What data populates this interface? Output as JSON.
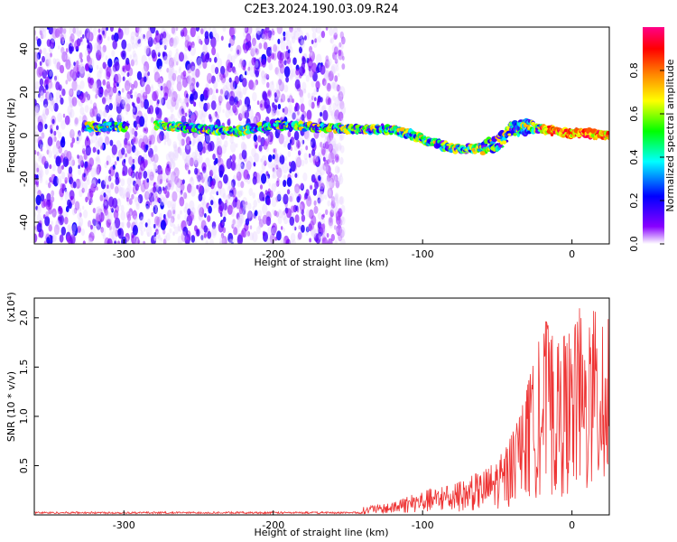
{
  "title": "C2E3.2024.190.03.09.R24",
  "chart_data": [
    {
      "type": "heatmap",
      "xlabel": "Height of straight line (km)",
      "ylabel": "Frequency (Hz)",
      "xlim": [
        -360,
        25
      ],
      "ylim": [
        -50,
        50
      ],
      "x_ticks": [
        -300,
        -200,
        -100,
        0
      ],
      "x_tick_labels": [
        "-300",
        "-200",
        "-100",
        "0"
      ],
      "y_ticks": [
        -40,
        -20,
        0,
        20,
        40
      ],
      "y_tick_labels": [
        "-40",
        "-20",
        "0",
        "20",
        "40"
      ],
      "grid": false,
      "colorbar": {
        "label": "Normalized spectral amplitude",
        "range": [
          0,
          1
        ],
        "ticks": [
          0.0,
          0.2,
          0.4,
          0.6,
          0.8
        ],
        "tick_labels": [
          "0.0",
          "0.2",
          "0.4",
          "0.6",
          "0.8"
        ],
        "colormap": [
          "#ffffff",
          "#8800ff",
          "#0000ff",
          "#00ffff",
          "#00ff00",
          "#ffff00",
          "#ff8800",
          "#ff0000",
          "#ff0088"
        ]
      },
      "noise_region_x": [
        -360,
        -165
      ],
      "signal_track": {
        "x": [
          -325,
          -300,
          -275,
          -250,
          -225,
          -200,
          -175,
          -150,
          -125,
          -110,
          -95,
          -80,
          -65,
          -50,
          -40,
          -30,
          -20,
          -10,
          0,
          10,
          25
        ],
        "freq": [
          4,
          4,
          5,
          3,
          2,
          5,
          4,
          3,
          3,
          1,
          -3,
          -6,
          -6,
          -4,
          3,
          4,
          3,
          2,
          1,
          1,
          0
        ]
      }
    },
    {
      "type": "line",
      "xlabel": "Height of straight line (km)",
      "ylabel": "SNR (10 * v/v)",
      "y_multiplier": "(x10⁴)",
      "xlim": [
        -360,
        25
      ],
      "ylim": [
        0,
        2.2
      ],
      "x_ticks": [
        -300,
        -200,
        -100,
        0
      ],
      "x_tick_labels": [
        "-300",
        "-200",
        "-100",
        "0"
      ],
      "y_ticks": [
        0.5,
        1.0,
        1.5,
        2.0
      ],
      "y_tick_labels": [
        "0.5",
        "1.0",
        "1.5",
        "2.0"
      ],
      "grid": false,
      "series": [
        {
          "color": "#ee3333",
          "envelope_x": [
            -360,
            -200,
            -150,
            -120,
            -100,
            -80,
            -60,
            -45,
            -35,
            -25,
            -18,
            -10,
            -5,
            0,
            5,
            10,
            15,
            20,
            25
          ],
          "envelope_y": [
            0.02,
            0.03,
            0.06,
            0.12,
            0.25,
            0.3,
            0.45,
            0.65,
            1.0,
            1.6,
            2.0,
            1.7,
            1.9,
            1.8,
            2.1,
            1.8,
            2.1,
            1.9,
            2.0
          ]
        }
      ]
    }
  ]
}
